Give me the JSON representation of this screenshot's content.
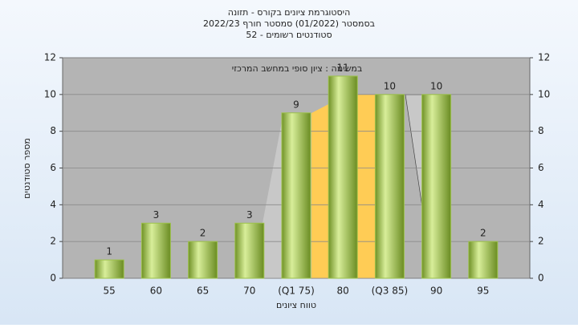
{
  "chart_data": {
    "type": "bar",
    "title": "היסטוגרמת ציונים בקורס - תזונה",
    "subtitle": "בסמסטר  (01/2022)  סמסטר חורף 2022/23",
    "subtitle2": "סטודנטים רשומים - 52",
    "annotation": "במשימה : ציון סופי במחשב המרכזי",
    "x_label": "טווח ציונים",
    "y_label": "מספר סטודנטים",
    "categories": [
      "55",
      "60",
      "65",
      "70",
      "(Q1 75)",
      "80",
      "(Q3 85)",
      "90",
      "95"
    ],
    "values": [
      1,
      3,
      2,
      3,
      9,
      11,
      10,
      10,
      2
    ],
    "color": "#9cc14a",
    "ylim": [
      0,
      12
    ],
    "yticks": [
      0,
      2,
      4,
      6,
      8,
      10,
      12
    ],
    "grid": true
  }
}
